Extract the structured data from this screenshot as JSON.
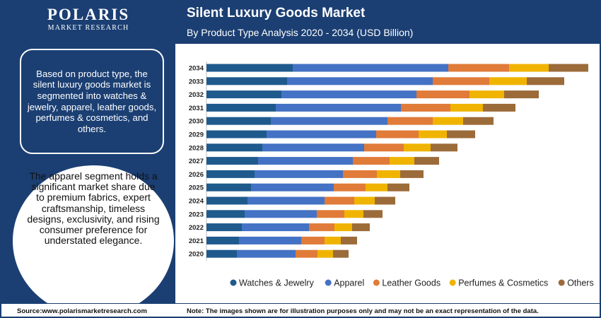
{
  "brand": {
    "name": "POLARIS",
    "sub": "MARKET RESEARCH"
  },
  "header": {
    "title": "Silent Luxury Goods Market",
    "subtitle": "By Product Type Analysis 2020 - 2034 (USD Billion)"
  },
  "info_box": {
    "text": "Based on product type, the silent luxury goods market is segmented into watches & jewelry, apparel, leather goods, perfumes & cosmetics, and others."
  },
  "highlight": {
    "text": "The apparel segment holds a significant market share due to premium fabrics, expert craftsmanship, timeless designs, exclusivity, and rising consumer preference for understated elegance."
  },
  "footer": {
    "source": "Source:www.polarismarketresearch.com",
    "note": "Note: The images shown are for illustration purposes only and may not be an exact representation of the data."
  },
  "chart_data": {
    "type": "bar",
    "orientation": "horizontal",
    "stacked": true,
    "categories": [
      "2034",
      "2033",
      "2032",
      "2031",
      "2030",
      "2029",
      "2028",
      "2027",
      "2026",
      "2025",
      "2024",
      "2023",
      "2022",
      "2021",
      "2020"
    ],
    "series": [
      {
        "name": "Watches & Jewelry",
        "color": "#1f5a8d",
        "values": [
          12.2,
          11.4,
          10.6,
          9.8,
          9.1,
          8.5,
          7.9,
          7.3,
          6.8,
          6.3,
          5.8,
          5.4,
          5.0,
          4.6,
          4.3
        ]
      },
      {
        "name": "Apparel",
        "color": "#4472c4",
        "values": [
          22.0,
          20.6,
          19.1,
          17.7,
          16.5,
          15.5,
          14.4,
          13.4,
          12.5,
          11.7,
          10.9,
          10.2,
          9.5,
          8.8,
          8.3
        ]
      },
      {
        "name": "Leather Goods",
        "color": "#e07b39",
        "values": [
          8.6,
          8.0,
          7.5,
          7.0,
          6.4,
          6.0,
          5.6,
          5.2,
          4.8,
          4.5,
          4.2,
          3.9,
          3.6,
          3.3,
          3.1
        ]
      },
      {
        "name": "Perfumes & Cosmetics",
        "color": "#f0b400",
        "values": [
          5.6,
          5.3,
          4.9,
          4.6,
          4.3,
          4.0,
          3.8,
          3.5,
          3.3,
          3.1,
          2.9,
          2.7,
          2.5,
          2.3,
          2.2
        ]
      },
      {
        "name": "Others",
        "color": "#9c6b3a",
        "values": [
          5.6,
          5.3,
          4.9,
          4.6,
          4.3,
          4.0,
          3.8,
          3.5,
          3.3,
          3.1,
          2.9,
          2.7,
          2.5,
          2.3,
          2.2
        ]
      }
    ],
    "legend_position": "bottom",
    "grid": false
  }
}
